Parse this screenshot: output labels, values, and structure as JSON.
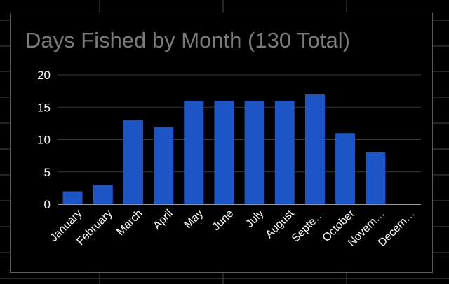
{
  "chart_data": {
    "type": "bar",
    "title": "Days Fished by Month (130 Total)",
    "xlabel": "",
    "ylabel": "",
    "categories": [
      "January",
      "February",
      "March",
      "April",
      "May",
      "June",
      "July",
      "August",
      "Septe…",
      "October",
      "Novem…",
      "Decem…"
    ],
    "values": [
      2,
      3,
      13,
      12,
      16,
      16,
      16,
      16,
      17,
      11,
      8,
      0
    ],
    "ylim": [
      0,
      20
    ],
    "yticks": [
      0,
      5,
      10,
      15,
      20
    ],
    "grid": true,
    "legend": "none",
    "colors": {
      "bar": "#1e55c6",
      "background": "#000000",
      "title": "#7b7b7b",
      "text": "#ffffff",
      "gridline": "#3a3a3a",
      "axis": "#cfcfcf"
    }
  }
}
